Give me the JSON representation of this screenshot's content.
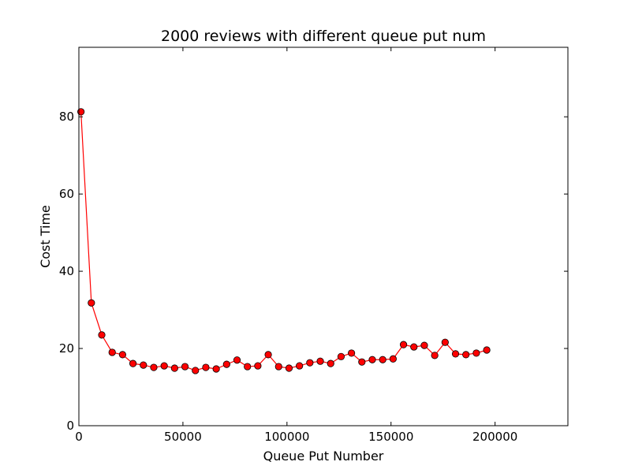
{
  "chart_data": {
    "type": "line",
    "title": "2000 reviews with different queue put num",
    "xlabel": "Queue Put Number",
    "ylabel": "Cost Time",
    "xlim": [
      0,
      235000
    ],
    "ylim": [
      0,
      98
    ],
    "grid": false,
    "xticks": [
      0,
      50000,
      100000,
      150000,
      200000
    ],
    "yticks": [
      0,
      20,
      40,
      60,
      80
    ],
    "xtick_labels": [
      "0",
      "50000",
      "100000",
      "150000",
      "200000"
    ],
    "ytick_labels": [
      "0",
      "20",
      "40",
      "60",
      "80"
    ],
    "series": [
      {
        "color": "#ff0000",
        "marker": "circle",
        "x": [
          1000,
          6000,
          11000,
          16000,
          21000,
          26000,
          31000,
          36000,
          41000,
          46000,
          51000,
          56000,
          61000,
          66000,
          71000,
          76000,
          81000,
          86000,
          91000,
          96000,
          101000,
          106000,
          111000,
          116000,
          121000,
          126000,
          131000,
          136000,
          141000,
          146000,
          151000,
          156000,
          161000,
          166000,
          171000,
          176000,
          181000,
          186000,
          191000,
          196000
        ],
        "y": [
          81.3,
          31.8,
          23.5,
          19.0,
          18.4,
          16.1,
          15.7,
          15.1,
          15.5,
          14.9,
          15.3,
          14.3,
          15.1,
          14.7,
          15.9,
          17.0,
          15.3,
          15.5,
          18.4,
          15.3,
          14.9,
          15.5,
          16.3,
          16.7,
          16.1,
          17.9,
          18.8,
          16.5,
          17.1,
          17.1,
          17.3,
          21.0,
          20.4,
          20.8,
          18.2,
          21.6,
          18.6,
          18.4,
          18.8,
          19.6
        ]
      }
    ]
  }
}
